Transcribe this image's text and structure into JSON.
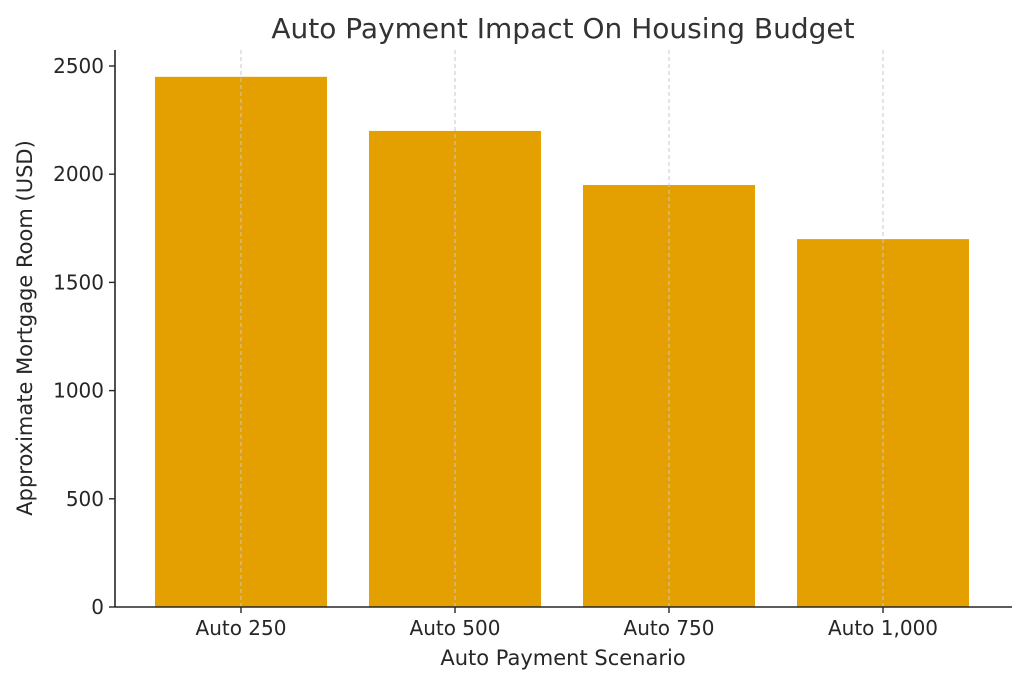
{
  "chart_data": {
    "type": "bar",
    "title": "Auto Payment Impact On Housing Budget",
    "xlabel": "Auto Payment Scenario",
    "ylabel": "Approximate Mortgage Room (USD)",
    "categories": [
      "Auto 250",
      "Auto 500",
      "Auto 750",
      "Auto 1,000"
    ],
    "values": [
      2450,
      2200,
      1950,
      1700
    ],
    "yticks": [
      0,
      500,
      1000,
      1500,
      2000,
      2500
    ],
    "ylim": [
      0,
      2575
    ],
    "grid": "x-dashed",
    "bar_color": "#E3A000"
  }
}
